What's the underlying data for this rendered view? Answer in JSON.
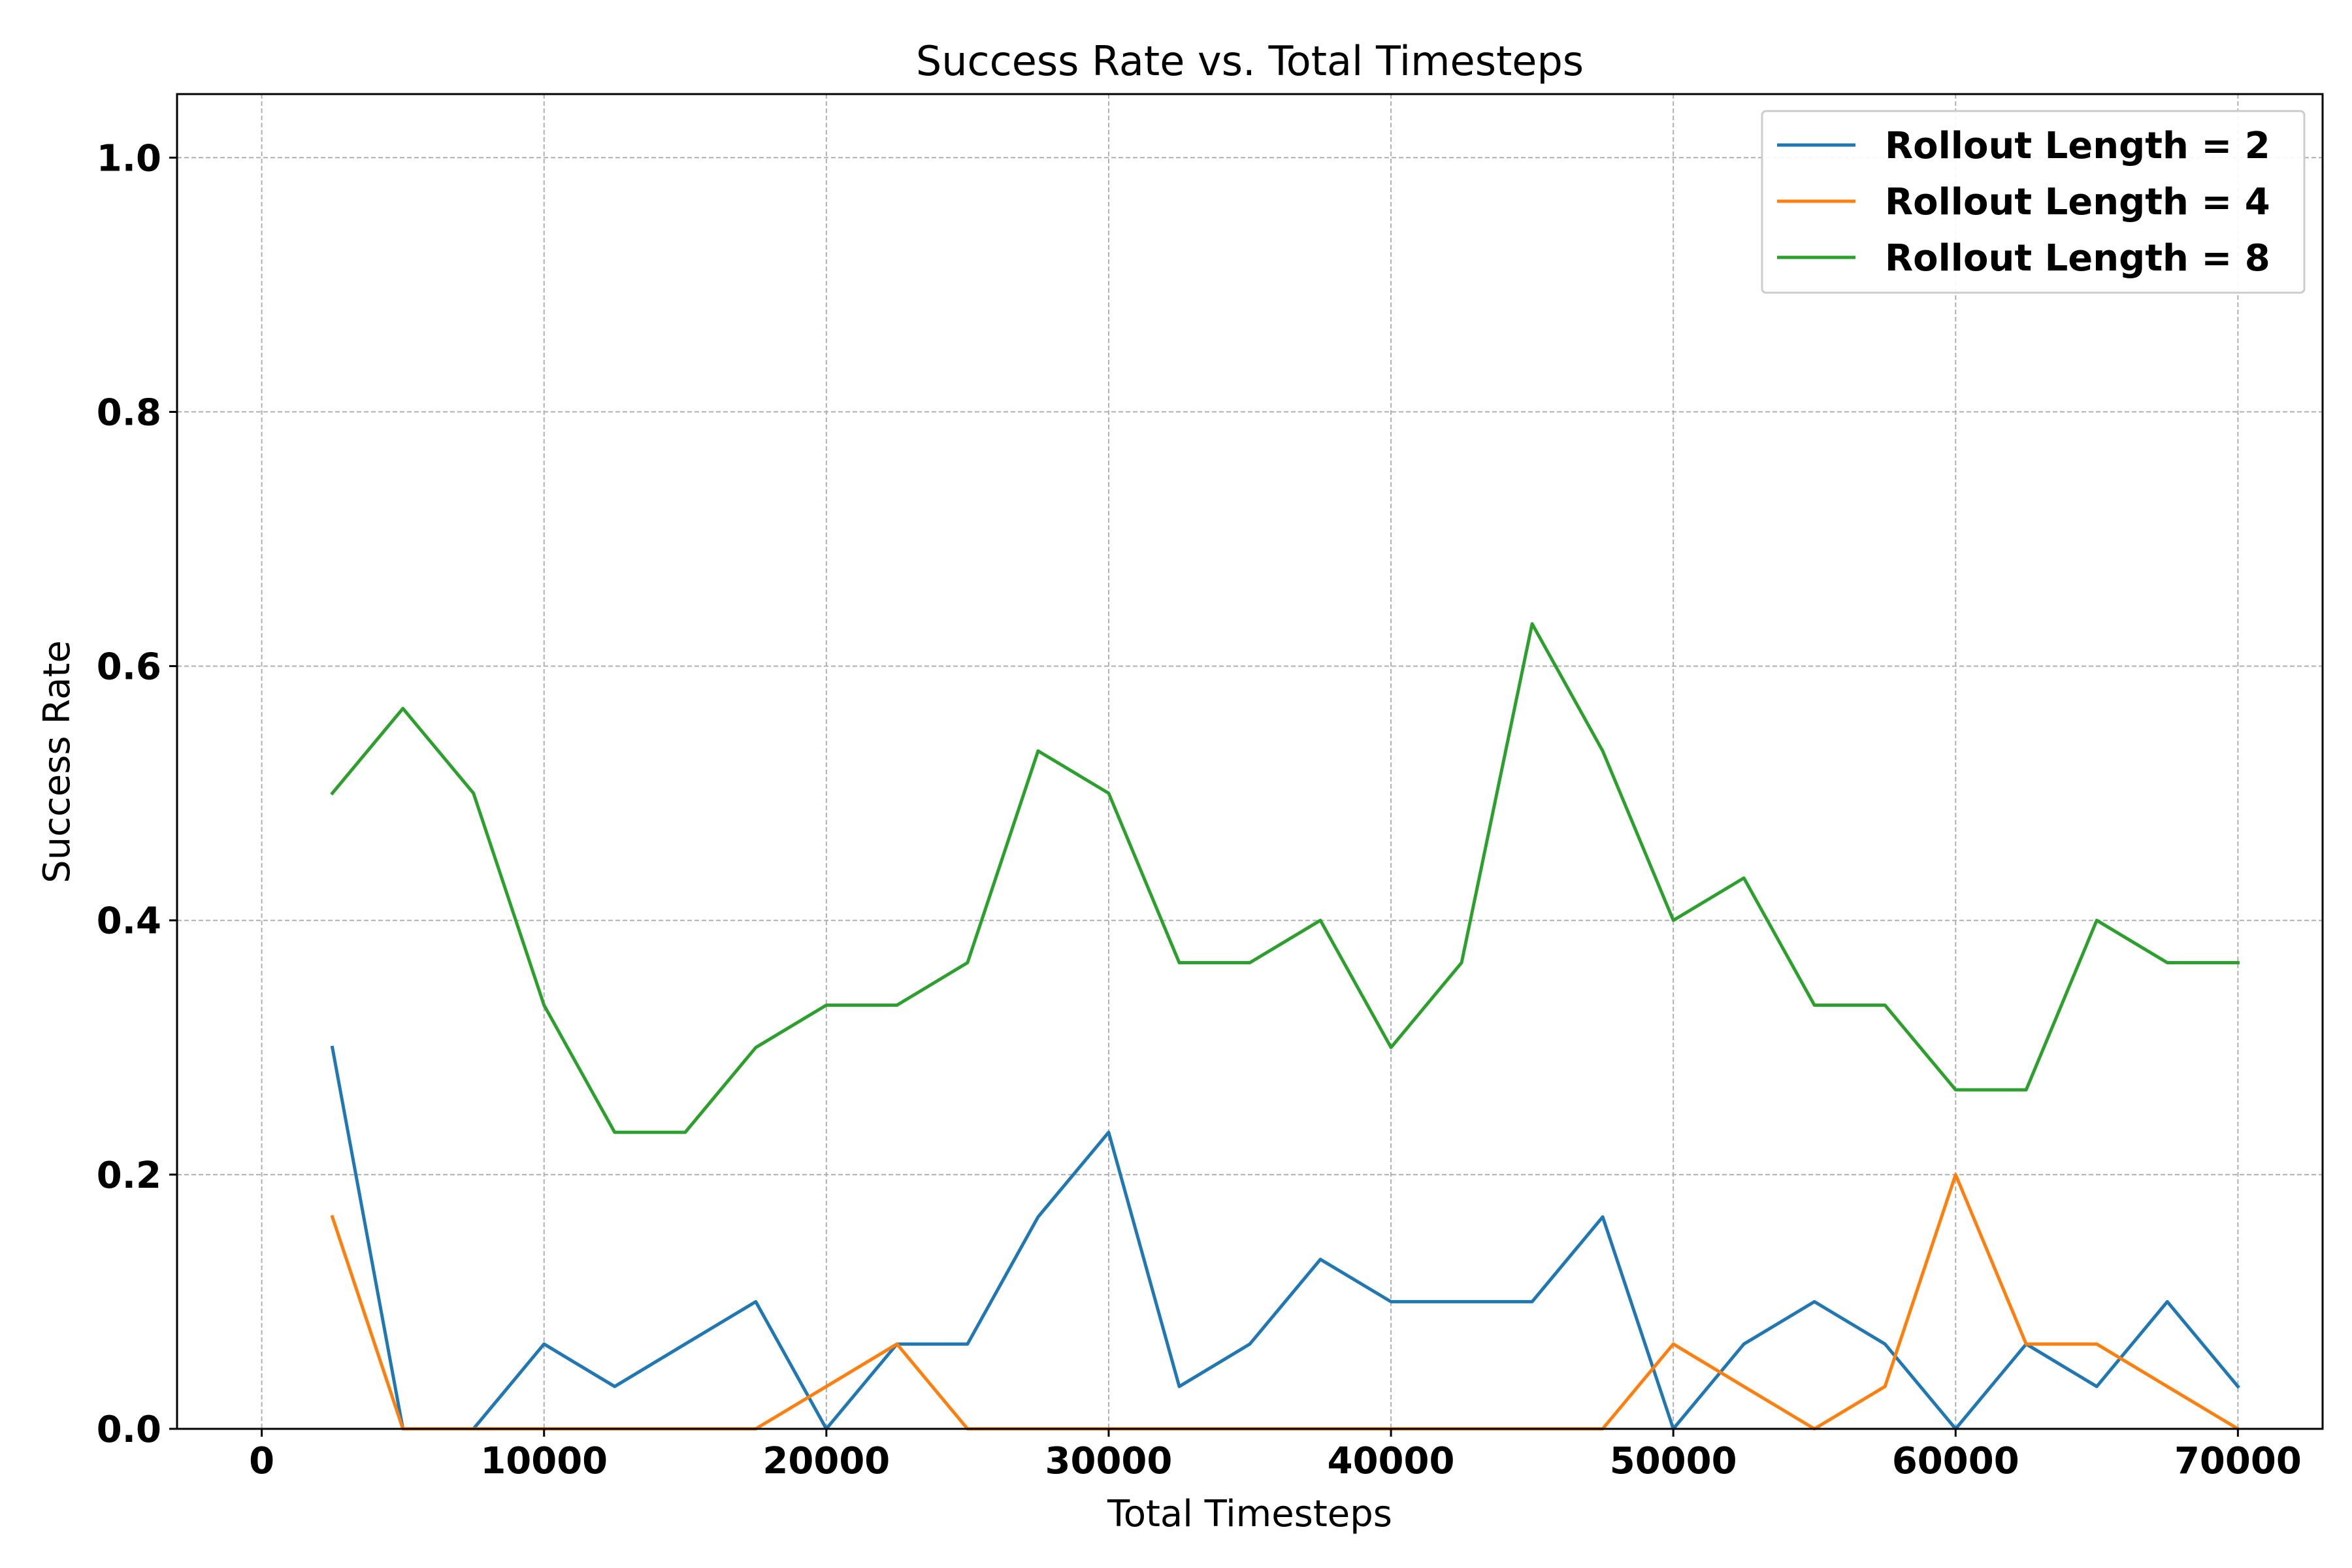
{
  "chart_data": {
    "type": "line",
    "title": "Success Rate vs. Total Timesteps",
    "xlabel": "Total Timesteps",
    "ylabel": "Success Rate",
    "xlim": [
      -3000,
      73000
    ],
    "ylim": [
      0,
      1.05
    ],
    "xticks": [
      0,
      10000,
      20000,
      30000,
      40000,
      50000,
      60000,
      70000
    ],
    "yticks": [
      0.0,
      0.2,
      0.4,
      0.6,
      0.8,
      1.0
    ],
    "xtick_labels": [
      "0",
      "10000",
      "20000",
      "30000",
      "40000",
      "50000",
      "60000",
      "70000"
    ],
    "ytick_labels": [
      "0.0",
      "0.2",
      "0.4",
      "0.6",
      "0.8",
      "1.0"
    ],
    "grid": true,
    "legend_position": "top-right",
    "x": [
      2500,
      5000,
      7500,
      10000,
      12500,
      15000,
      17500,
      20000,
      22500,
      25000,
      27500,
      30000,
      32500,
      35000,
      37500,
      40000,
      42500,
      45000,
      47500,
      50000,
      52500,
      55000,
      57500,
      60000,
      62500,
      65000,
      67500,
      70000
    ],
    "series": [
      {
        "name": "Rollout Length = 2",
        "color": "#1f77b4",
        "values": [
          0.3,
          0,
          0,
          0.0667,
          0.0333,
          0.0667,
          0.1,
          0,
          0.0667,
          0.0667,
          0.1667,
          0.2333,
          0.0333,
          0.0667,
          0.1333,
          0.1,
          0.1,
          0.1,
          0.1667,
          0,
          0.0667,
          0.1,
          0.0667,
          0,
          0.0667,
          0.0333,
          0.1,
          0.0333
        ]
      },
      {
        "name": "Rollout Length = 4",
        "color": "#ff7f0e",
        "values": [
          0.1667,
          0,
          0,
          0,
          0,
          0,
          0,
          0.0333,
          0.0667,
          0,
          0,
          0,
          0,
          0,
          0,
          0,
          0,
          0,
          0,
          0.0667,
          0.0333,
          0,
          0.0333,
          0.2,
          0.0667,
          0.0667,
          0.0333,
          0
        ]
      },
      {
        "name": "Rollout Length = 8",
        "color": "#2ca02c",
        "values": [
          0.5,
          0.5667,
          0.5,
          0.3333,
          0.2333,
          0.2333,
          0.3,
          0.3333,
          0.3333,
          0.3667,
          0.5333,
          0.5,
          0.3667,
          0.3667,
          0.4,
          0.3,
          0.3667,
          0.6333,
          0.5333,
          0.4,
          0.4333,
          0.3333,
          0.3333,
          0.2667,
          0.2667,
          0.4,
          0.3667,
          0.3667
        ]
      }
    ]
  }
}
